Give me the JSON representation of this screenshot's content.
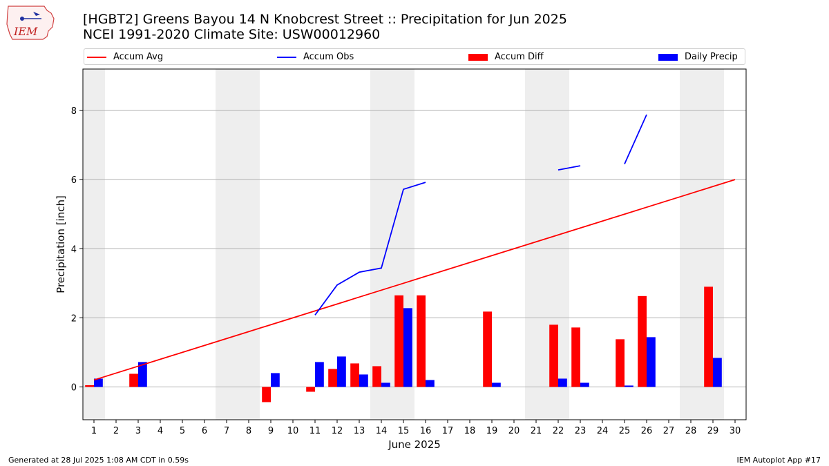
{
  "header": {
    "title_line1": "[HGBT2] Greens Bayou 14 N Knobcrest Street :: Precipitation for Jun 2025",
    "title_line2": "NCEI 1991-2020 Climate Site: USW00012960",
    "logo_text": "IEM"
  },
  "footer": {
    "left": "Generated at 28 Jul 2025 1:08 AM CDT in 0.59s",
    "right": "IEM Autoplot App #17"
  },
  "colors": {
    "avg": "#ff0000",
    "obs": "#0000ff",
    "diff": "#ff0000",
    "daily": "#0000ff",
    "weekend": "#eeeeee",
    "grid": "#b0b0b0"
  },
  "legend": [
    {
      "label": "Accum Avg",
      "kind": "line",
      "color": "#ff0000"
    },
    {
      "label": "Accum Obs",
      "kind": "line",
      "color": "#0000ff"
    },
    {
      "label": "Accum Diff",
      "kind": "box",
      "color": "#ff0000"
    },
    {
      "label": "Daily Precip",
      "kind": "box",
      "color": "#0000ff"
    }
  ],
  "chart_data": {
    "type": "bar",
    "xlabel": "June 2025",
    "ylabel": "Precipitation [inch]",
    "xlim": [
      0.5,
      30.5
    ],
    "ylim": [
      -0.95,
      9.2
    ],
    "yticks": [
      0,
      2,
      4,
      6,
      8
    ],
    "days": [
      1,
      2,
      3,
      4,
      5,
      6,
      7,
      8,
      9,
      10,
      11,
      12,
      13,
      14,
      15,
      16,
      17,
      18,
      19,
      20,
      21,
      22,
      23,
      24,
      25,
      26,
      27,
      28,
      29,
      30
    ],
    "weekend_days": [
      1,
      7,
      8,
      14,
      15,
      21,
      22,
      28,
      29
    ],
    "grid": true,
    "legend_position": "top",
    "series": [
      {
        "name": "Accum Avg",
        "kind": "line",
        "values": [
          0.2,
          0.4,
          0.6,
          0.8,
          1.0,
          1.2,
          1.4,
          1.6,
          1.8,
          2.0,
          2.2,
          2.4,
          2.6,
          2.8,
          3.0,
          3.2,
          3.4,
          3.6,
          3.8,
          4.0,
          4.2,
          4.4,
          4.6,
          4.8,
          5.0,
          5.2,
          5.4,
          5.6,
          5.8,
          6.0
        ]
      },
      {
        "name": "Accum Obs",
        "kind": "line",
        "values": [
          null,
          null,
          null,
          null,
          null,
          null,
          null,
          null,
          null,
          null,
          2.08,
          2.95,
          3.32,
          3.44,
          5.72,
          5.92,
          null,
          null,
          null,
          null,
          null,
          6.28,
          6.4,
          null,
          6.45,
          7.88,
          null,
          null,
          null,
          null
        ]
      },
      {
        "name": "Accum Diff",
        "kind": "bar",
        "values": [
          0.05,
          0,
          0.38,
          0,
          0,
          0,
          0,
          0,
          -0.44,
          0,
          -0.14,
          0.52,
          0.68,
          0.6,
          2.65,
          2.65,
          0,
          0,
          2.18,
          0,
          0,
          1.8,
          1.72,
          0,
          1.38,
          2.63,
          0,
          0,
          2.9,
          0
        ]
      },
      {
        "name": "Daily Precip",
        "kind": "bar",
        "values": [
          0.24,
          0,
          0.72,
          0,
          0,
          0,
          0,
          0,
          0.4,
          0,
          0.72,
          0.88,
          0.36,
          0.12,
          2.28,
          0.2,
          0,
          0,
          0.12,
          0,
          0,
          0.24,
          0.12,
          0,
          0.04,
          1.44,
          0,
          0,
          0.84,
          0
        ]
      }
    ]
  }
}
